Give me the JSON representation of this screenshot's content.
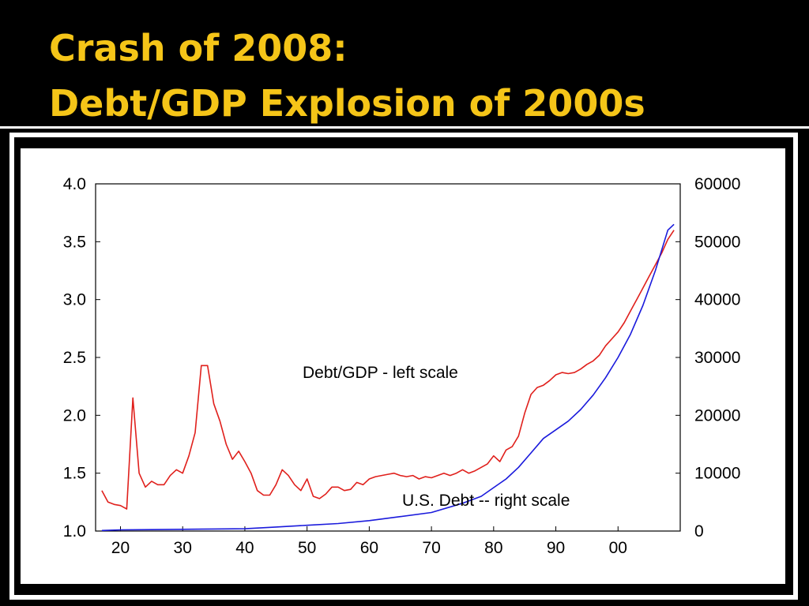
{
  "slide": {
    "title_line1": "Crash of 2008:",
    "title_line2": "Debt/GDP Explosion of 2000s"
  },
  "colors": {
    "background": "#000000",
    "title": "#f5c518",
    "debt_gdp_line": "#e0201c",
    "us_debt_line": "#1a1adc"
  },
  "chart_data": {
    "type": "line",
    "x_range": [
      1916,
      2010
    ],
    "x_ticks": [
      1920,
      1930,
      1940,
      1950,
      1960,
      1970,
      1980,
      1990,
      2000
    ],
    "x_tick_labels": [
      "20",
      "30",
      "40",
      "50",
      "60",
      "70",
      "80",
      "90",
      "00"
    ],
    "y_left": {
      "range": [
        1.0,
        4.0
      ],
      "ticks": [
        1.0,
        1.5,
        2.0,
        2.5,
        3.0,
        3.5,
        4.0
      ],
      "tick_labels": [
        "1.0",
        "1.5",
        "2.0",
        "2.5",
        "3.0",
        "3.5",
        "4.0"
      ]
    },
    "y_right": {
      "range": [
        0,
        60000
      ],
      "ticks": [
        0,
        10000,
        20000,
        30000,
        40000,
        50000,
        60000
      ],
      "tick_labels": [
        "0",
        "10000",
        "20000",
        "30000",
        "40000",
        "50000",
        "60000"
      ]
    },
    "series": [
      {
        "name": "Debt/GDP - left scale",
        "axis": "left",
        "color": "#e0201c",
        "x": [
          1917,
          1918,
          1919,
          1920,
          1921,
          1922,
          1923,
          1924,
          1925,
          1926,
          1927,
          1928,
          1929,
          1930,
          1931,
          1932,
          1933,
          1934,
          1935,
          1936,
          1937,
          1938,
          1939,
          1940,
          1941,
          1942,
          1943,
          1944,
          1945,
          1946,
          1947,
          1948,
          1949,
          1950,
          1951,
          1952,
          1953,
          1954,
          1955,
          1956,
          1957,
          1958,
          1959,
          1960,
          1961,
          1962,
          1963,
          1964,
          1965,
          1966,
          1967,
          1968,
          1969,
          1970,
          1971,
          1972,
          1973,
          1974,
          1975,
          1976,
          1977,
          1978,
          1979,
          1980,
          1981,
          1982,
          1983,
          1984,
          1985,
          1986,
          1987,
          1988,
          1989,
          1990,
          1991,
          1992,
          1993,
          1994,
          1995,
          1996,
          1997,
          1998,
          1999,
          2000,
          2001,
          2002,
          2003,
          2004,
          2005,
          2006,
          2007,
          2008,
          2009
        ],
        "y": [
          1.35,
          1.25,
          1.23,
          1.22,
          1.19,
          2.15,
          1.5,
          1.38,
          1.43,
          1.4,
          1.4,
          1.48,
          1.53,
          1.5,
          1.65,
          1.85,
          2.43,
          2.43,
          2.1,
          1.95,
          1.75,
          1.62,
          1.69,
          1.6,
          1.5,
          1.35,
          1.31,
          1.31,
          1.4,
          1.53,
          1.48,
          1.4,
          1.35,
          1.45,
          1.3,
          1.28,
          1.32,
          1.38,
          1.38,
          1.35,
          1.36,
          1.42,
          1.4,
          1.45,
          1.47,
          1.48,
          1.49,
          1.5,
          1.48,
          1.47,
          1.48,
          1.45,
          1.47,
          1.46,
          1.48,
          1.5,
          1.48,
          1.5,
          1.53,
          1.5,
          1.52,
          1.55,
          1.58,
          1.65,
          1.6,
          1.7,
          1.73,
          1.82,
          2.02,
          2.18,
          2.24,
          2.26,
          2.3,
          2.35,
          2.37,
          2.36,
          2.37,
          2.4,
          2.44,
          2.47,
          2.52,
          2.6,
          2.66,
          2.72,
          2.8,
          2.9,
          3.0,
          3.1,
          3.2,
          3.3,
          3.4,
          3.52,
          3.6
        ]
      },
      {
        "name": "U.S. Debt -- right scale",
        "axis": "right",
        "color": "#1a1adc",
        "x": [
          1917,
          1920,
          1925,
          1930,
          1935,
          1940,
          1945,
          1950,
          1955,
          1960,
          1965,
          1970,
          1975,
          1978,
          1980,
          1982,
          1984,
          1986,
          1988,
          1990,
          1992,
          1994,
          1996,
          1998,
          2000,
          2002,
          2004,
          2006,
          2008,
          2009
        ],
        "y": [
          100,
          200,
          250,
          300,
          350,
          400,
          700,
          1000,
          1300,
          1800,
          2500,
          3200,
          4800,
          6000,
          7500,
          9000,
          11000,
          13500,
          16000,
          17500,
          19000,
          21000,
          23500,
          26500,
          30000,
          34000,
          39000,
          45000,
          52000,
          53000
        ]
      }
    ],
    "annotations": [
      {
        "text": "Debt/GDP - left scale"
      },
      {
        "text": "U.S. Debt -- right scale"
      }
    ]
  }
}
